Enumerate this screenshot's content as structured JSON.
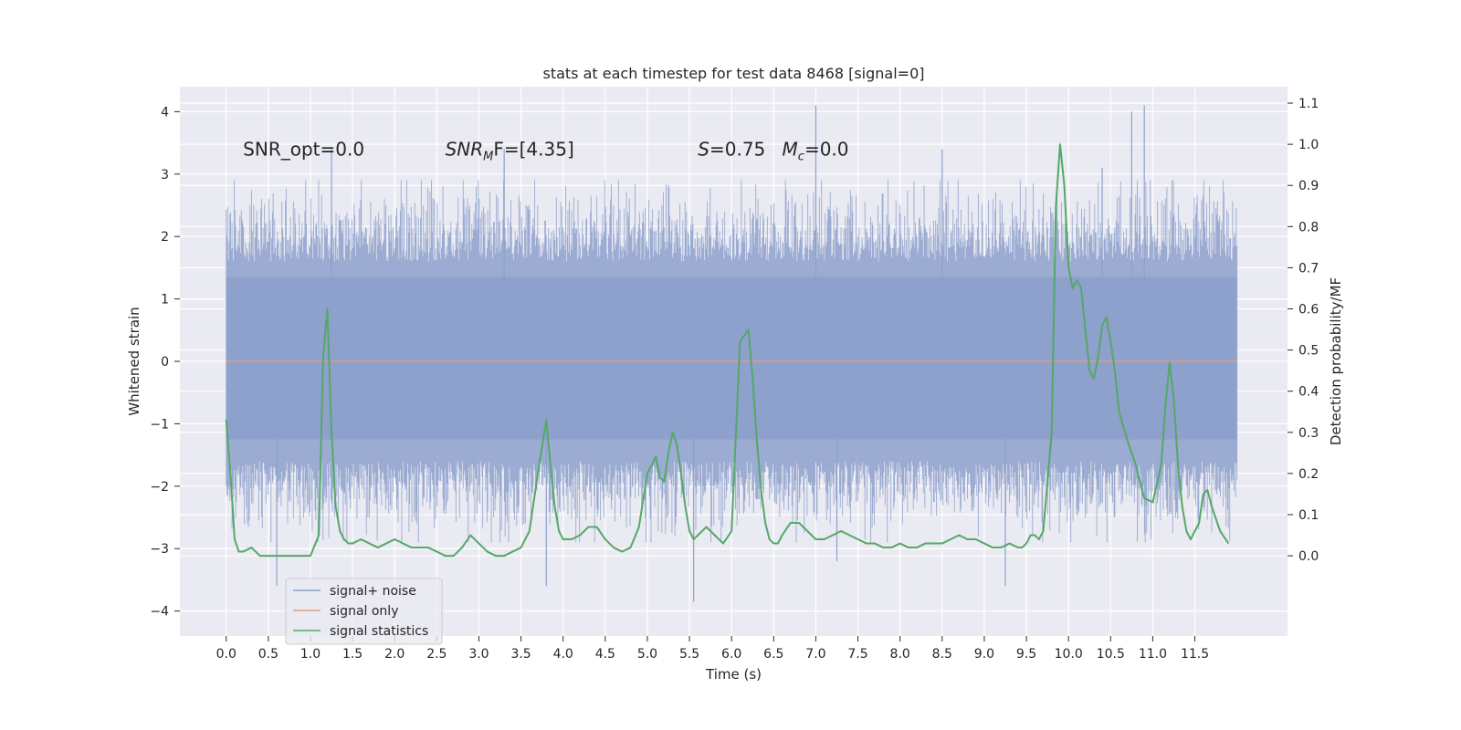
{
  "chart_data": {
    "type": "line",
    "title": "stats at each timestep for test data 8468 [signal=0]",
    "xlabel": "Time (s)",
    "ylabel_left": "Whitened strain",
    "ylabel_right": "Detection probability/MF",
    "xlim": [
      -0.55,
      12.6
    ],
    "ylim_left": [
      -4.4,
      4.4
    ],
    "ylim_right": [
      -0.195,
      1.14
    ],
    "xticks": [
      0.0,
      0.5,
      1.0,
      1.5,
      2.0,
      2.5,
      3.0,
      3.5,
      4.0,
      4.5,
      5.0,
      5.5,
      6.0,
      6.5,
      7.0,
      7.5,
      8.0,
      8.5,
      9.0,
      9.5,
      10.0,
      10.5,
      11.0,
      11.5
    ],
    "xtick_labels": [
      "0.0",
      "0.5",
      "1.0",
      "1.5",
      "2.0",
      "2.5",
      "3.0",
      "3.5",
      "4.0",
      "4.5",
      "5.0",
      "5.5",
      "6.0",
      "6.5",
      "7.0",
      "7.5",
      "8.0",
      "8.5",
      "9.0",
      "9.5",
      "10.0",
      "10.5",
      "11.0",
      "11.5"
    ],
    "yticks_left": [
      4,
      3,
      2,
      1,
      0,
      -1,
      -2,
      -3,
      -4
    ],
    "ytick_labels_left": [
      "4",
      "3",
      "2",
      "1",
      "0",
      "−1",
      "−2",
      "−3",
      "−4"
    ],
    "yticks_right": [
      1.1,
      1.0,
      0.9,
      0.8,
      0.7,
      0.6,
      0.5,
      0.4,
      0.3,
      0.2,
      0.1,
      0.0
    ],
    "ytick_labels_right": [
      "1.1",
      "1.0",
      "0.9",
      "0.8",
      "0.7",
      "0.6",
      "0.5",
      "0.4",
      "0.3",
      "0.2",
      "0.1",
      "0.0"
    ],
    "grid": true,
    "legend_position": "lower-left",
    "background_color": "#eaeaf2",
    "series": [
      {
        "name": "signal+ noise",
        "axis": "left",
        "color": "#8da0cb",
        "x_range": [
          0.0,
          12.0
        ],
        "band_approx": [
          -2.7,
          2.7
        ],
        "extreme_peaks": [
          [
            0.6,
            -3.6
          ],
          [
            1.25,
            3.4
          ],
          [
            3.3,
            3.4
          ],
          [
            3.8,
            -3.6
          ],
          [
            5.55,
            -3.85
          ],
          [
            7.0,
            4.1
          ],
          [
            7.25,
            -3.2
          ],
          [
            8.5,
            3.4
          ],
          [
            9.25,
            -3.6
          ],
          [
            10.4,
            3.1
          ],
          [
            10.75,
            4.0
          ],
          [
            10.9,
            4.1
          ]
        ]
      },
      {
        "name": "signal only",
        "axis": "left",
        "color": "#e49a7f",
        "x": [
          0.0,
          12.0
        ],
        "y": [
          0.0,
          0.0
        ]
      },
      {
        "name": "signal statistics",
        "axis": "right",
        "color": "#55a868",
        "x": [
          0.0,
          0.05,
          0.1,
          0.15,
          0.2,
          0.3,
          0.4,
          0.5,
          0.6,
          0.7,
          0.8,
          0.9,
          1.0,
          1.1,
          1.15,
          1.2,
          1.25,
          1.3,
          1.35,
          1.4,
          1.45,
          1.5,
          1.6,
          1.7,
          1.8,
          1.9,
          2.0,
          2.1,
          2.2,
          2.3,
          2.4,
          2.5,
          2.6,
          2.7,
          2.8,
          2.9,
          3.0,
          3.1,
          3.2,
          3.3,
          3.4,
          3.5,
          3.6,
          3.7,
          3.8,
          3.85,
          3.9,
          3.95,
          4.0,
          4.05,
          4.1,
          4.2,
          4.3,
          4.4,
          4.5,
          4.6,
          4.7,
          4.8,
          4.9,
          5.0,
          5.1,
          5.15,
          5.2,
          5.25,
          5.3,
          5.35,
          5.4,
          5.45,
          5.5,
          5.55,
          5.6,
          5.65,
          5.7,
          5.8,
          5.9,
          6.0,
          6.1,
          6.2,
          6.25,
          6.3,
          6.35,
          6.4,
          6.45,
          6.5,
          6.55,
          6.6,
          6.7,
          6.8,
          6.9,
          7.0,
          7.1,
          7.2,
          7.3,
          7.4,
          7.5,
          7.6,
          7.7,
          7.8,
          7.9,
          8.0,
          8.1,
          8.2,
          8.3,
          8.4,
          8.5,
          8.6,
          8.7,
          8.8,
          8.9,
          9.0,
          9.1,
          9.2,
          9.3,
          9.4,
          9.45,
          9.5,
          9.55,
          9.6,
          9.65,
          9.7,
          9.8,
          9.85,
          9.9,
          9.95,
          10.0,
          10.05,
          10.1,
          10.15,
          10.2,
          10.25,
          10.3,
          10.35,
          10.4,
          10.45,
          10.5,
          10.55,
          10.6,
          10.7,
          10.8,
          10.9,
          11.0,
          11.1,
          11.15,
          11.2,
          11.25,
          11.3,
          11.35,
          11.4,
          11.45,
          11.5,
          11.55,
          11.6,
          11.65,
          11.7,
          11.8,
          11.9
        ],
        "y": [
          0.33,
          0.2,
          0.04,
          0.01,
          0.01,
          0.02,
          0.0,
          0.0,
          0.0,
          0.0,
          0.0,
          0.0,
          0.0,
          0.05,
          0.48,
          0.6,
          0.3,
          0.12,
          0.06,
          0.04,
          0.03,
          0.03,
          0.04,
          0.03,
          0.02,
          0.03,
          0.04,
          0.03,
          0.02,
          0.02,
          0.02,
          0.01,
          0.0,
          0.0,
          0.02,
          0.05,
          0.03,
          0.01,
          0.0,
          0.0,
          0.01,
          0.02,
          0.06,
          0.2,
          0.33,
          0.22,
          0.12,
          0.06,
          0.04,
          0.04,
          0.04,
          0.05,
          0.07,
          0.07,
          0.04,
          0.02,
          0.01,
          0.02,
          0.07,
          0.2,
          0.24,
          0.19,
          0.18,
          0.25,
          0.3,
          0.27,
          0.2,
          0.12,
          0.06,
          0.04,
          0.05,
          0.06,
          0.07,
          0.05,
          0.03,
          0.06,
          0.52,
          0.55,
          0.43,
          0.28,
          0.16,
          0.08,
          0.04,
          0.03,
          0.03,
          0.05,
          0.08,
          0.08,
          0.06,
          0.04,
          0.04,
          0.05,
          0.06,
          0.05,
          0.04,
          0.03,
          0.03,
          0.02,
          0.02,
          0.03,
          0.02,
          0.02,
          0.03,
          0.03,
          0.03,
          0.04,
          0.05,
          0.04,
          0.04,
          0.03,
          0.02,
          0.02,
          0.03,
          0.02,
          0.02,
          0.03,
          0.05,
          0.05,
          0.04,
          0.06,
          0.3,
          0.85,
          1.0,
          0.9,
          0.7,
          0.65,
          0.67,
          0.65,
          0.55,
          0.45,
          0.43,
          0.48,
          0.56,
          0.58,
          0.52,
          0.45,
          0.35,
          0.28,
          0.22,
          0.14,
          0.13,
          0.22,
          0.36,
          0.47,
          0.38,
          0.22,
          0.12,
          0.06,
          0.04,
          0.06,
          0.08,
          0.15,
          0.16,
          0.12,
          0.06,
          0.03
        ]
      }
    ],
    "annotations": [
      {
        "text": "SNR_opt=0.0",
        "x": 0.2,
        "y": 3.3
      },
      {
        "text_main": "SNR",
        "text_sub": "M",
        "text_tail": "F=[4.35]",
        "x": 2.6,
        "y": 3.3
      },
      {
        "text_main": "S",
        "text_tail": "=0.75",
        "x": 5.6,
        "y": 3.3
      },
      {
        "text_main": "M",
        "text_sub": "c",
        "text_tail": "=0.0",
        "x": 6.6,
        "y": 3.3
      }
    ]
  }
}
